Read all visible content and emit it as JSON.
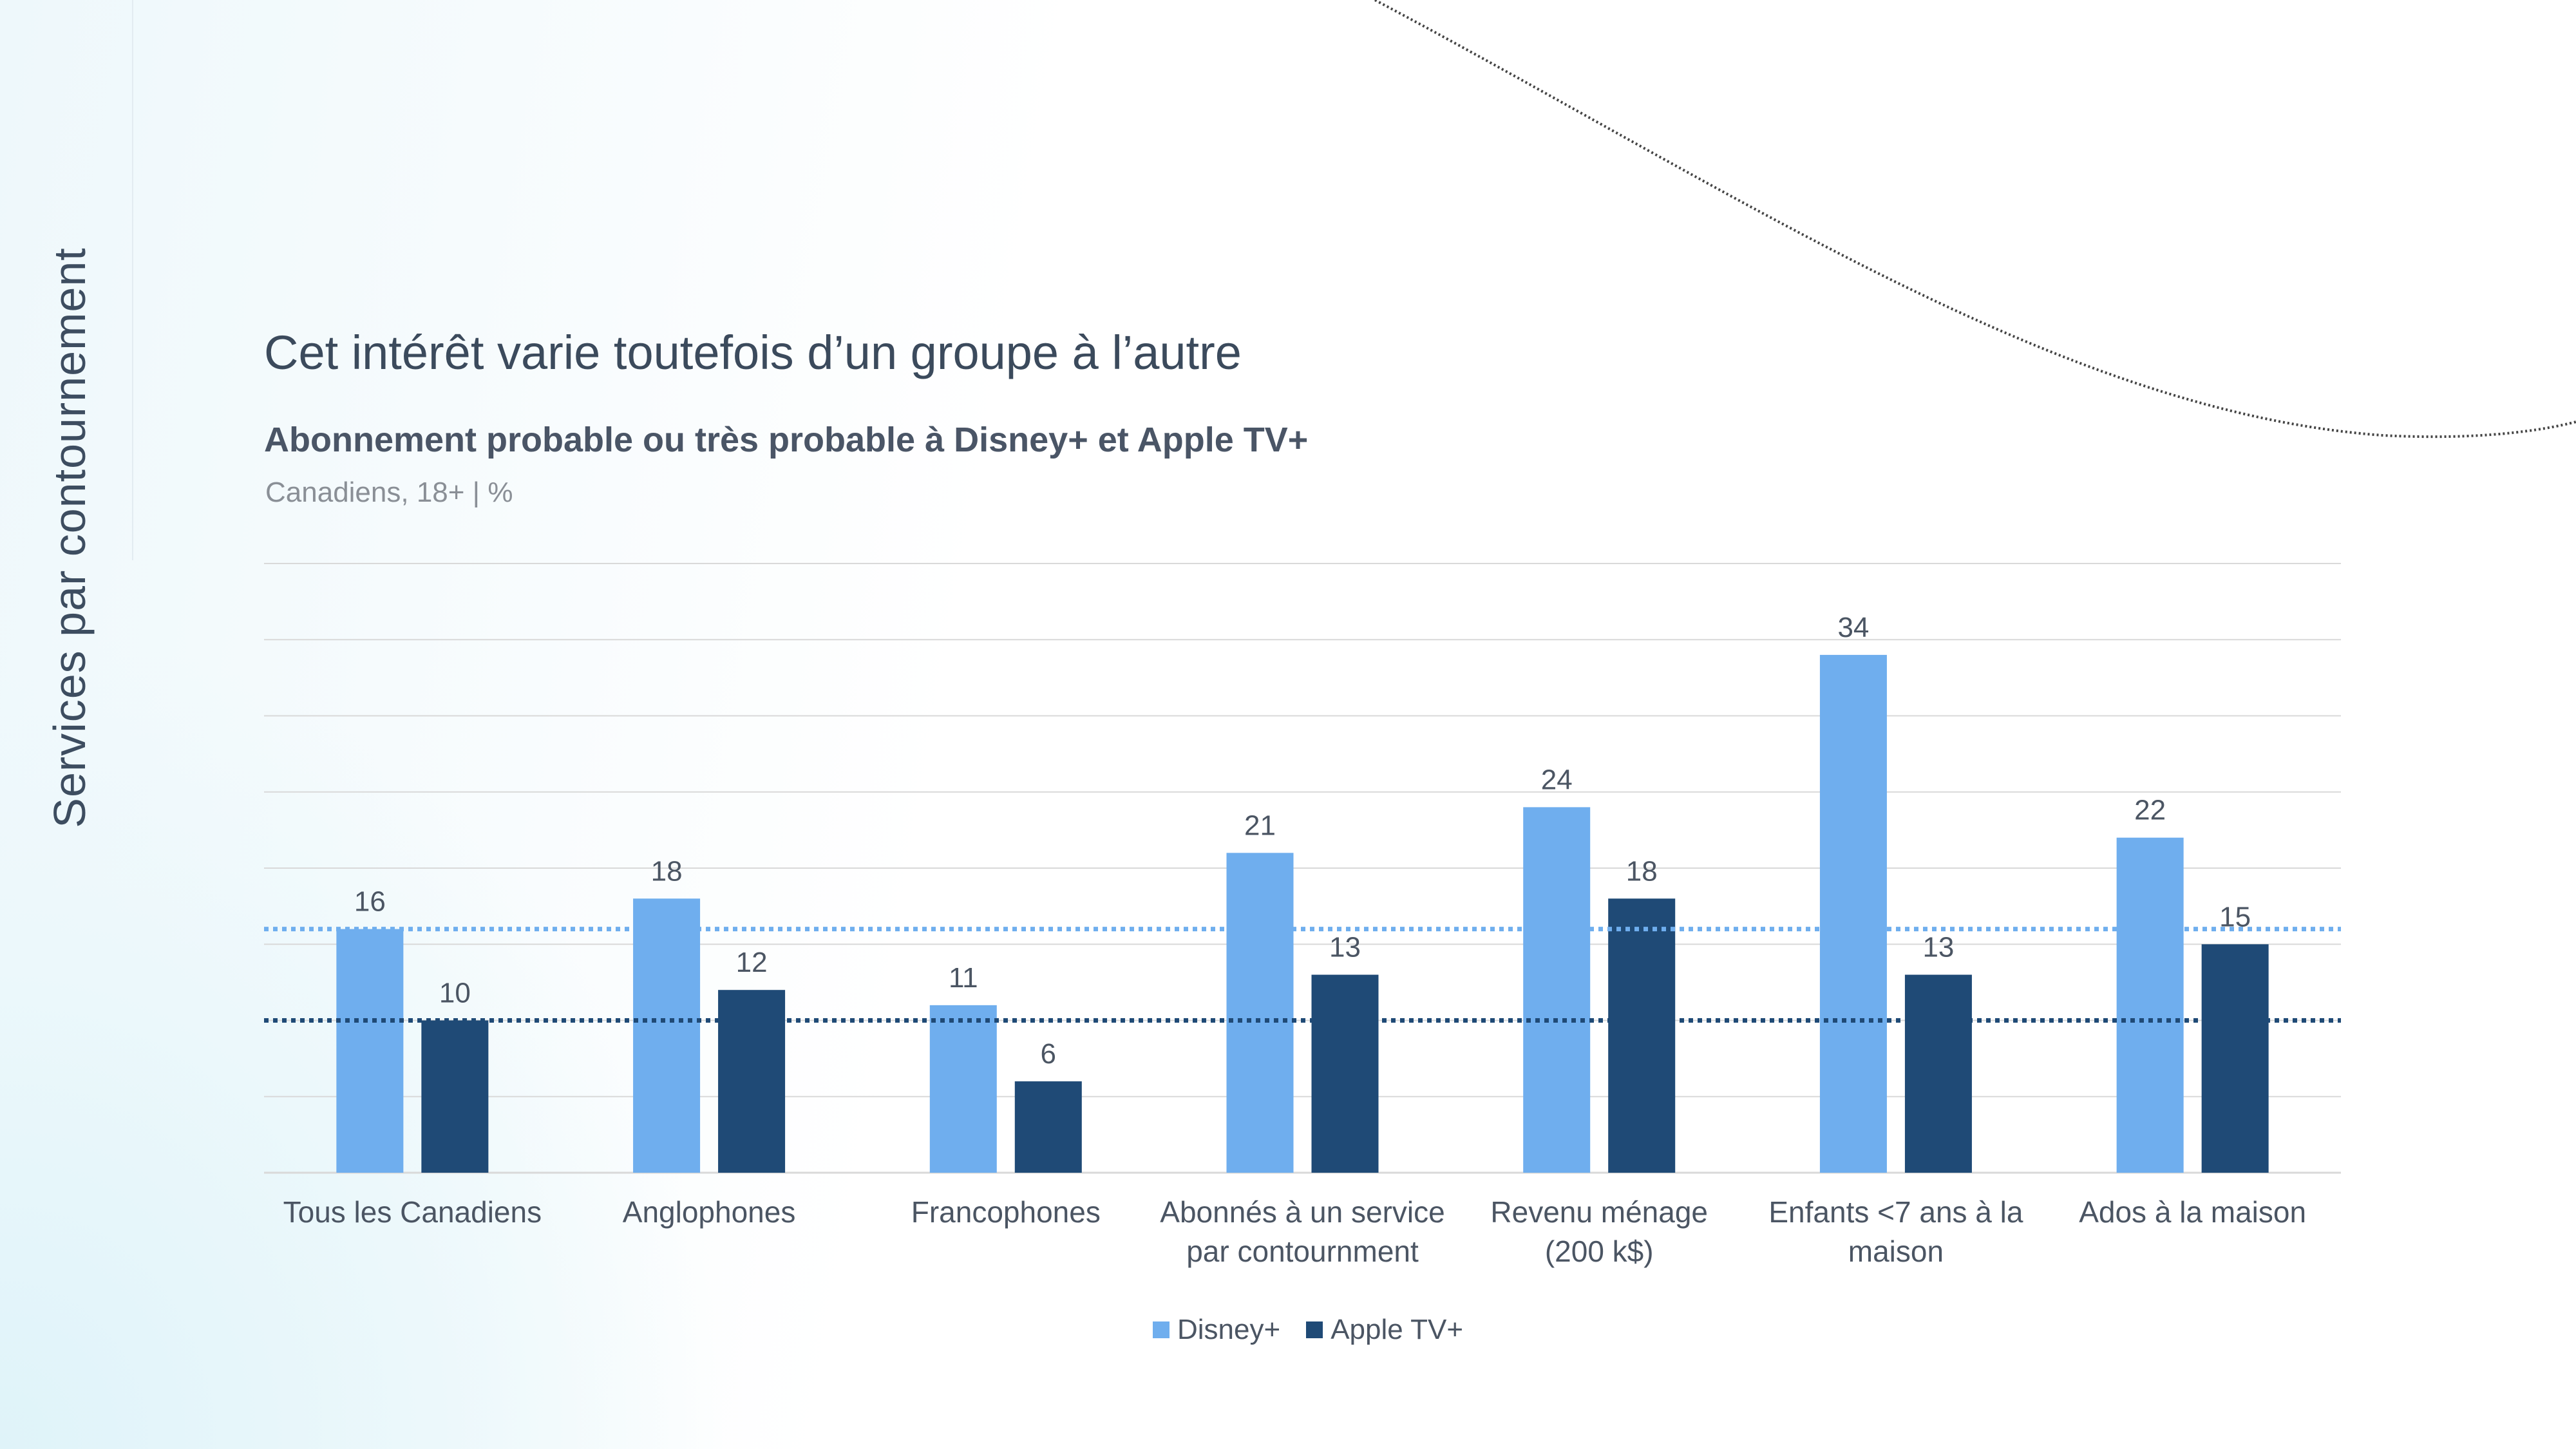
{
  "side_title": "Services par contournement",
  "title": "Cet intérêt varie toutefois d’un groupe à l’autre",
  "subtitle": "Abonnement probable ou très probable à Disney+ et Apple TV+",
  "note": "Canadiens, 18+ | %",
  "colors": {
    "disney": "#6faeee",
    "apple": "#1f4a76",
    "grid": "#d9d9d9",
    "text": "#4b5563"
  },
  "chart_data": {
    "type": "bar",
    "categories": [
      [
        "Tous les Canadiens"
      ],
      [
        "Anglophones"
      ],
      [
        "Francophones"
      ],
      [
        "Abonnés à un service",
        "par contournment"
      ],
      [
        "Revenu ménage",
        "(200 k$)"
      ],
      [
        "Enfants <7 ans à la",
        "maison"
      ],
      [
        "Ados à la maison"
      ]
    ],
    "series": [
      {
        "name": "Disney+",
        "values": [
          16,
          18,
          11,
          21,
          24,
          34,
          22
        ],
        "color": "#6faeee"
      },
      {
        "name": "Apple TV+",
        "values": [
          10,
          12,
          6,
          13,
          18,
          13,
          15
        ],
        "color": "#1f4a76"
      }
    ],
    "reference_lines": [
      {
        "series": "Disney+",
        "value": 16,
        "style": "dotted"
      },
      {
        "series": "Apple TV+",
        "value": 10,
        "style": "dotted"
      }
    ],
    "ylim": [
      0,
      40
    ],
    "grid": true,
    "legend": "bottom-center"
  }
}
